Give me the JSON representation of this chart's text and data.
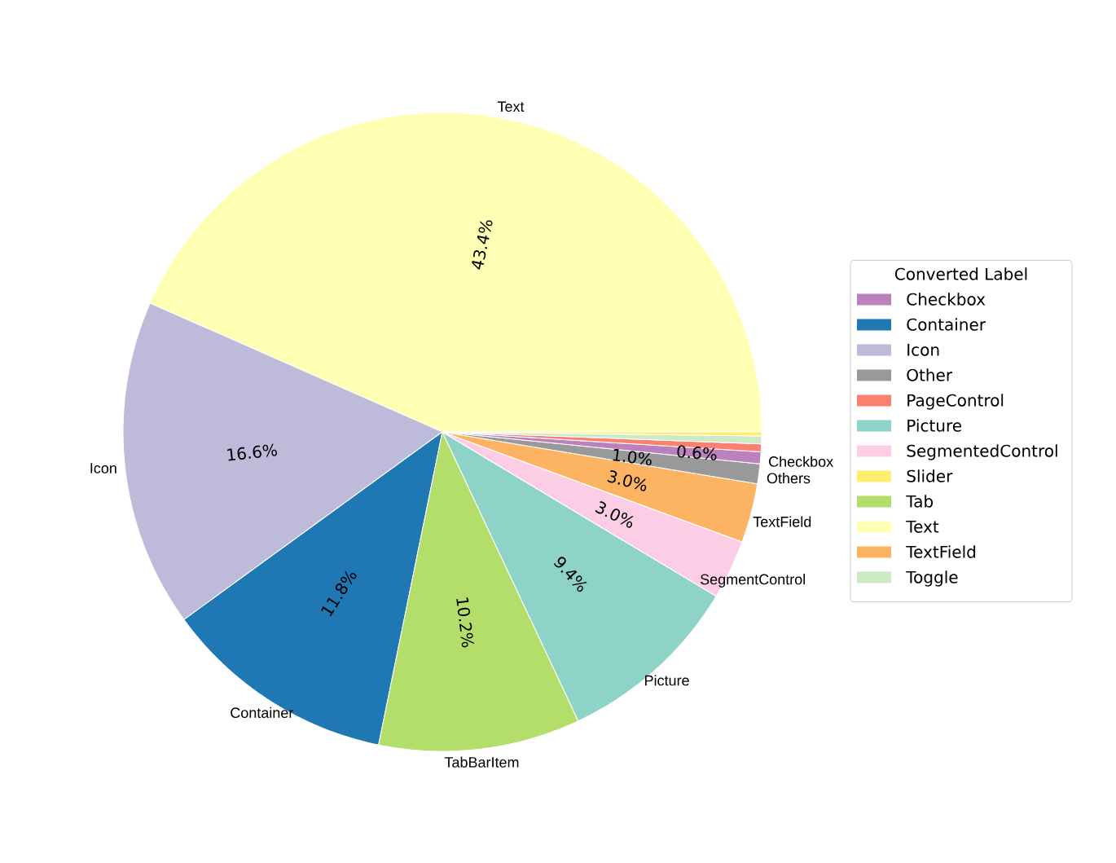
{
  "chart_data": {
    "type": "pie",
    "legend_title": "Converted Label",
    "legend": "right",
    "categories": [
      "Text",
      "Icon",
      "Container",
      "Tab",
      "Picture",
      "SegmentedControl",
      "TextField",
      "Other",
      "Checkbox",
      "PageControl",
      "Toggle",
      "Slider"
    ],
    "values": [
      43.4,
      16.6,
      11.8,
      10.2,
      9.4,
      3.0,
      3.0,
      1.0,
      0.6,
      0.4,
      0.4,
      0.2
    ],
    "colors": [
      "#ffffb3",
      "#bebada",
      "#1f77b4",
      "#b3de69",
      "#8dd3c7",
      "#fccde5",
      "#fdb462",
      "#999999",
      "#bc80bd",
      "#fb8072",
      "#ccebc5",
      "#ffed6f"
    ],
    "value_labels": [
      "43.4%",
      "16.6%",
      "11.8%",
      "10.2%",
      "9.4%",
      "3.0%",
      "3.0%",
      "1.0%",
      "0.6%",
      null,
      null,
      null
    ],
    "annotations": [
      {
        "text": "Text",
        "x": "Text"
      },
      {
        "text": "Icon",
        "x": "Icon"
      },
      {
        "text": "Container",
        "x": "Container"
      },
      {
        "text": "TabBarItem",
        "x": "Tab"
      },
      {
        "text": "Picture",
        "x": "Picture"
      },
      {
        "text": "SegmentControl",
        "x": "SegmentedControl"
      },
      {
        "text": "TextField",
        "x": "TextField"
      },
      {
        "text": "Others",
        "x": "Other"
      },
      {
        "text": "Checkbox",
        "x": "Checkbox"
      }
    ]
  }
}
